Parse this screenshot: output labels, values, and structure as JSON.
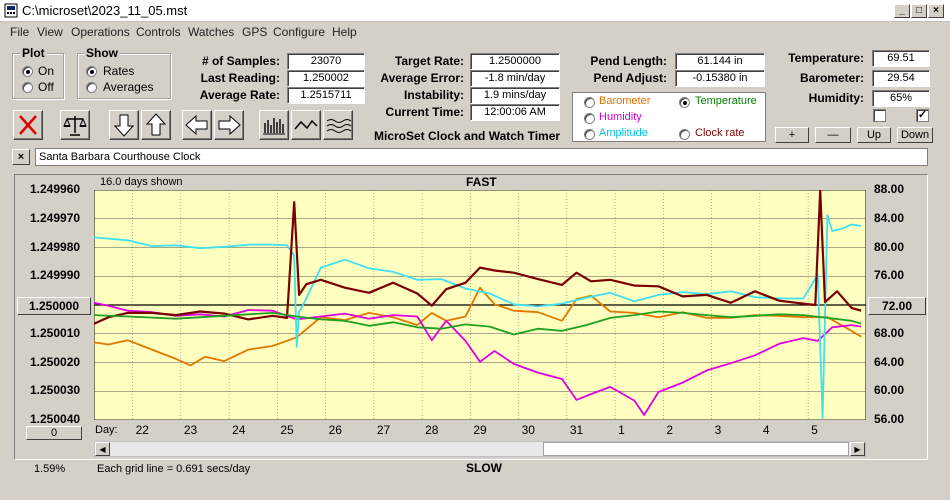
{
  "window": {
    "title": "C:\\microset\\2023_11_05.mst"
  },
  "menu": [
    "File",
    "View",
    "Operations",
    "Controls",
    "Watches",
    "GPS",
    "Configure",
    "Help"
  ],
  "plot_group": {
    "title": "Plot",
    "on": "On",
    "off": "Off",
    "selected": "On"
  },
  "show_group": {
    "title": "Show",
    "rates": "Rates",
    "averages": "Averages",
    "selected": "Rates"
  },
  "stats": {
    "samples_label": "# of Samples:",
    "samples": "23070",
    "last_label": "Last Reading:",
    "last": "1.250002",
    "avg_label": "Average Rate:",
    "avg": "1.2515711"
  },
  "rates": {
    "target_label": "Target Rate:",
    "target": "1.2500000",
    "error_label": "Average Error:",
    "error": "-1.8 min/day",
    "instab_label": "Instability:",
    "instab": "1.9 mins/day",
    "time_label": "Current Time:",
    "time": "12:00:06 AM"
  },
  "pend": {
    "length_label": "Pend Length:",
    "length": "61.144 in",
    "adjust_label": "Pend Adjust:",
    "adjust": "-0.15380 in"
  },
  "env": {
    "temp_label": "Temperature:",
    "temp": "69.51",
    "baro_label": "Barometer:",
    "baro": "29.54",
    "hum_label": "Humidity:",
    "hum": "65%"
  },
  "app_title": "MicroSet Clock and Watch Timer",
  "series_select": {
    "items": [
      {
        "label": "Barometer",
        "color": "#e07000"
      },
      {
        "label": "Temperature",
        "color": "#008000"
      },
      {
        "label": "Humidity",
        "color": "#d000d0"
      },
      {
        "label": "Clock rate",
        "color": "#800000"
      },
      {
        "label": "Amplitude",
        "color": "#00c0e0"
      }
    ],
    "selected": "Temperature"
  },
  "small_buttons": {
    "plus": "+",
    "minus": "—",
    "up": "Up",
    "down": "Down"
  },
  "clock_name": "Santa Barbara Courthouse Clock",
  "close_label": "×",
  "chart_data": {
    "type": "line",
    "top_label": "FAST",
    "bottom_label": "SLOW",
    "days_shown": "16.0 days shown",
    "grid_note": "Each grid line = 0.691 secs/day",
    "percent": "1.59%",
    "xaxis_prefix": "Day:",
    "x_ticks": [
      "22",
      "23",
      "24",
      "25",
      "26",
      "27",
      "28",
      "29",
      "30",
      "31",
      "1",
      "2",
      "3",
      "4",
      "5"
    ],
    "left_ticks": [
      "1.249960",
      "1.249970",
      "1.249980",
      "1.249990",
      "1.250000",
      "1.250010",
      "1.250020",
      "1.250030",
      "1.250040"
    ],
    "right_ticks": [
      "88.00",
      "84.00",
      "80.00",
      "76.00",
      "72.00",
      "68.00",
      "64.00",
      "60.00",
      "56.00"
    ],
    "left_center_button": "1.250000",
    "right_center_button": "72.00",
    "bottom_left_button": "0",
    "ylim_left": [
      1.24996,
      1.25004
    ],
    "ylim_right": [
      56,
      88
    ],
    "xlim": [
      21.3,
      37.3
    ],
    "series": [
      {
        "name": "Temperature",
        "color": "#20a020",
        "values": [
          [
            21.3,
            70.6
          ],
          [
            22,
            70.4
          ],
          [
            23,
            70.1
          ],
          [
            24,
            70.5
          ],
          [
            25,
            70.9
          ],
          [
            25.5,
            70.4
          ],
          [
            26,
            70.0
          ],
          [
            26.5,
            69.8
          ],
          [
            27,
            69.1
          ],
          [
            27.5,
            69.6
          ],
          [
            28,
            68.9
          ],
          [
            28.5,
            68.7
          ],
          [
            29,
            69.3
          ],
          [
            29.5,
            69.0
          ],
          [
            30,
            67.9
          ],
          [
            30.5,
            68.7
          ],
          [
            31,
            68.4
          ],
          [
            31.5,
            69.2
          ],
          [
            32,
            70.2
          ],
          [
            32.5,
            70.6
          ],
          [
            33,
            71.1
          ],
          [
            33.5,
            70.9
          ],
          [
            34,
            70.6
          ],
          [
            34.5,
            70.3
          ],
          [
            35,
            70.5
          ],
          [
            35.5,
            70.7
          ],
          [
            36,
            70.6
          ],
          [
            36.5,
            70.2
          ],
          [
            37,
            69.8
          ],
          [
            37.2,
            69.4
          ]
        ]
      },
      {
        "name": "Barometer",
        "color": "#e07800",
        "values": [
          [
            21.3,
            66.8
          ],
          [
            21.6,
            66.5
          ],
          [
            22,
            67.1
          ],
          [
            22.5,
            65.8
          ],
          [
            23,
            64.5
          ],
          [
            23.3,
            63.6
          ],
          [
            23.6,
            64.8
          ],
          [
            24,
            64.2
          ],
          [
            24.5,
            65.8
          ],
          [
            25,
            66.3
          ],
          [
            25.5,
            67.5
          ],
          [
            26,
            70.3
          ],
          [
            26.5,
            69.9
          ],
          [
            27,
            70.9
          ],
          [
            27.5,
            70.3
          ],
          [
            28,
            69.2
          ],
          [
            28.3,
            70.9
          ],
          [
            28.6,
            69.8
          ],
          [
            29,
            70.4
          ],
          [
            29.3,
            74.4
          ],
          [
            29.6,
            72.1
          ],
          [
            30,
            71.2
          ],
          [
            30.5,
            71.0
          ],
          [
            31,
            69.8
          ],
          [
            31.3,
            72.8
          ],
          [
            31.6,
            73.3
          ],
          [
            32,
            71.1
          ],
          [
            32.5,
            70.9
          ],
          [
            33,
            70.3
          ],
          [
            33.5,
            71.0
          ],
          [
            34,
            70.2
          ],
          [
            34.5,
            70.2
          ],
          [
            35,
            70.6
          ],
          [
            35.5,
            70.5
          ],
          [
            36,
            70.3
          ],
          [
            36.5,
            70.3
          ],
          [
            37,
            68.4
          ],
          [
            37.2,
            67.6
          ]
        ]
      },
      {
        "name": "Humidity",
        "color": "#e000e0",
        "values": [
          [
            21.3,
            72.3
          ],
          [
            21.6,
            71.9
          ],
          [
            22,
            71.2
          ],
          [
            22.5,
            71.0
          ],
          [
            23,
            70.5
          ],
          [
            23.5,
            70.7
          ],
          [
            24,
            70.4
          ],
          [
            24.5,
            71.3
          ],
          [
            25,
            71.2
          ],
          [
            25.5,
            70.0
          ],
          [
            26,
            70.4
          ],
          [
            26.5,
            70.8
          ],
          [
            27,
            70.1
          ],
          [
            27.5,
            70.6
          ],
          [
            28,
            70.4
          ],
          [
            28.3,
            67.1
          ],
          [
            28.6,
            69.8
          ],
          [
            29,
            67.0
          ],
          [
            29.3,
            64.1
          ],
          [
            29.6,
            65.6
          ],
          [
            30,
            63.8
          ],
          [
            30.5,
            62.6
          ],
          [
            31,
            61.7
          ],
          [
            31.3,
            58.8
          ],
          [
            31.6,
            59.6
          ],
          [
            32,
            60.6
          ],
          [
            32.5,
            58.7
          ],
          [
            32.7,
            56.7
          ],
          [
            33,
            59.9
          ],
          [
            33.5,
            61.2
          ],
          [
            34,
            62.9
          ],
          [
            34.5,
            63.9
          ],
          [
            35,
            65.0
          ],
          [
            35.5,
            66.6
          ],
          [
            36,
            67.4
          ],
          [
            36.3,
            67.0
          ],
          [
            36.6,
            68.9
          ],
          [
            37,
            69.2
          ],
          [
            37.2,
            69.0
          ]
        ]
      },
      {
        "name": "Amplitude",
        "color": "#40e0f0",
        "values": [
          [
            21.3,
            81.4
          ],
          [
            22,
            81.0
          ],
          [
            22.5,
            80.2
          ],
          [
            23,
            80.3
          ],
          [
            23.5,
            79.9
          ],
          [
            24,
            80.1
          ],
          [
            24.5,
            80.4
          ],
          [
            25,
            80.4
          ],
          [
            25.3,
            80.3
          ],
          [
            25.45,
            78.9
          ],
          [
            25.5,
            66.2
          ],
          [
            25.55,
            71.0
          ],
          [
            25.7,
            72.9
          ],
          [
            26,
            77.2
          ],
          [
            26.5,
            78.3
          ],
          [
            27,
            77.1
          ],
          [
            27.5,
            76.6
          ],
          [
            28,
            75.5
          ],
          [
            28.5,
            75.6
          ],
          [
            29,
            74.3
          ],
          [
            29.5,
            73.6
          ],
          [
            30,
            72.1
          ],
          [
            30.5,
            71.8
          ],
          [
            31,
            72.2
          ],
          [
            31.5,
            73.0
          ],
          [
            32,
            73.7
          ],
          [
            32.5,
            72.5
          ],
          [
            33,
            73.4
          ],
          [
            33.5,
            73.8
          ],
          [
            34,
            73.5
          ],
          [
            34.5,
            73.9
          ],
          [
            35,
            73.1
          ],
          [
            35.5,
            72.9
          ],
          [
            36,
            72.9
          ],
          [
            36.3,
            76.2
          ],
          [
            36.4,
            56.3
          ],
          [
            36.5,
            84.5
          ],
          [
            36.6,
            82.3
          ],
          [
            36.8,
            82.6
          ],
          [
            37,
            83.2
          ],
          [
            37.2,
            83.0
          ]
        ]
      },
      {
        "name": "Clock rate",
        "color": "#7a0000",
        "values": [
          [
            21.3,
            69.4
          ],
          [
            21.6,
            70.3
          ],
          [
            22,
            70.9
          ],
          [
            22.5,
            70.9
          ],
          [
            23,
            70.6
          ],
          [
            23.5,
            71.1
          ],
          [
            24,
            70.8
          ],
          [
            24.5,
            70.0
          ],
          [
            25,
            70.5
          ],
          [
            25.3,
            70.2
          ],
          [
            25.45,
            86.3
          ],
          [
            25.55,
            73.4
          ],
          [
            25.7,
            74.9
          ],
          [
            26,
            75.5
          ],
          [
            26.5,
            74.4
          ],
          [
            27,
            73.7
          ],
          [
            27.5,
            75.1
          ],
          [
            28,
            73.6
          ],
          [
            28.3,
            71.9
          ],
          [
            28.6,
            74.2
          ],
          [
            29,
            75.1
          ],
          [
            29.3,
            77.2
          ],
          [
            29.6,
            76.8
          ],
          [
            30,
            76.5
          ],
          [
            30.5,
            75.6
          ],
          [
            31,
            74.8
          ],
          [
            31.3,
            76.5
          ],
          [
            31.6,
            75.3
          ],
          [
            32,
            75.5
          ],
          [
            32.5,
            74.7
          ],
          [
            33,
            74.6
          ],
          [
            33.5,
            73.2
          ],
          [
            34,
            73.4
          ],
          [
            34.5,
            72.3
          ],
          [
            35,
            73.9
          ],
          [
            35.5,
            72.6
          ],
          [
            36,
            72.2
          ],
          [
            36.25,
            72.0
          ],
          [
            36.35,
            87.9
          ],
          [
            36.45,
            72.4
          ],
          [
            36.7,
            73.9
          ],
          [
            37,
            71.6
          ],
          [
            37.2,
            71.2
          ]
        ]
      }
    ]
  }
}
